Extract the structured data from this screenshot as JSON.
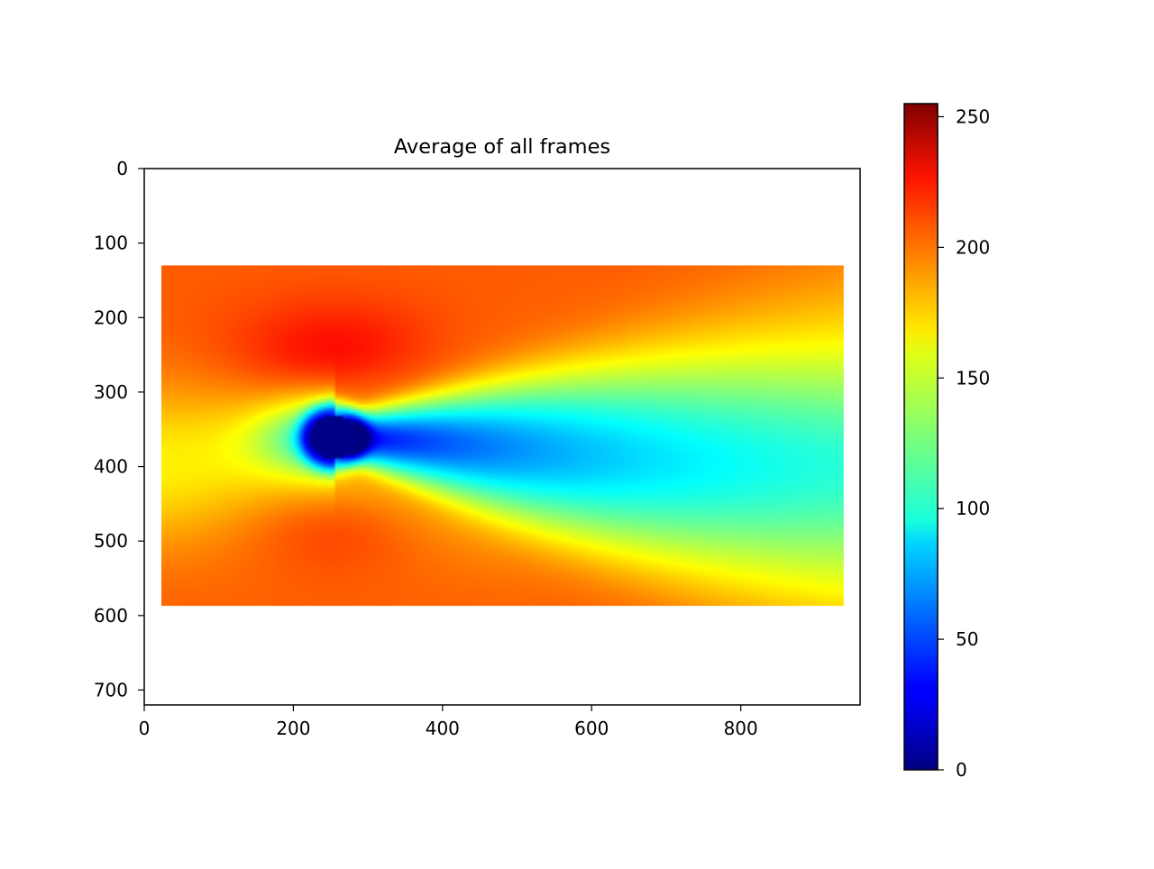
{
  "chart_data": {
    "type": "heatmap",
    "title": "Average of all frames",
    "xlabel": "",
    "ylabel": "",
    "xlim": [
      0,
      960
    ],
    "ylim": [
      720,
      0
    ],
    "x_ticks": [
      0,
      200,
      400,
      600,
      800
    ],
    "y_ticks": [
      0,
      100,
      200,
      300,
      400,
      500,
      600,
      700
    ],
    "grid": false,
    "image_extent": {
      "x": [
        23,
        938
      ],
      "y": [
        130,
        587
      ]
    },
    "colormap": "jet",
    "colorbar": {
      "range": [
        0,
        255
      ],
      "ticks": [
        0,
        50,
        100,
        150,
        200,
        250
      ]
    },
    "field": {
      "description_obstacle_center": [
        254,
        360
      ],
      "obstacle_radius": [
        30,
        30
      ],
      "background_value": 200
    }
  }
}
